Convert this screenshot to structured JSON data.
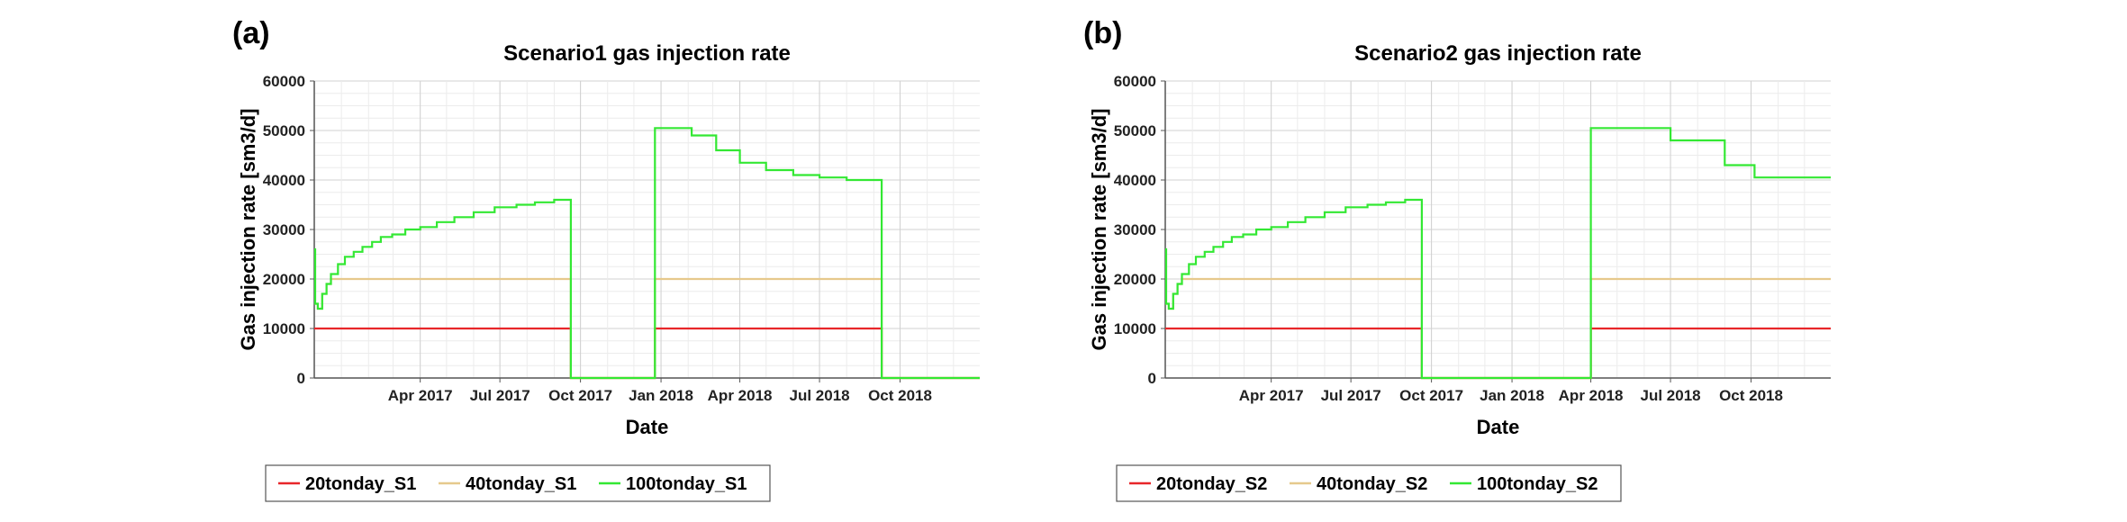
{
  "chart_data": [
    {
      "type": "line",
      "panel_label": "(a)",
      "title": "Scenario1 gas injection rate",
      "xlabel": "Date",
      "ylabel": "Gas injection rate [sm3/d]",
      "ylim": [
        0,
        60000
      ],
      "yticks": [
        "0",
        "10000",
        "20000",
        "30000",
        "40000",
        "50000",
        "60000"
      ],
      "xlim": [
        "2016-12-01",
        "2018-12-31"
      ],
      "xticks": [
        {
          "date": "2017-04-01",
          "label": "Apr 2017"
        },
        {
          "date": "2017-07-01",
          "label": "Jul 2017"
        },
        {
          "date": "2017-10-01",
          "label": "Oct 2017"
        },
        {
          "date": "2018-01-01",
          "label": "Jan 2018"
        },
        {
          "date": "2018-04-01",
          "label": "Apr 2018"
        },
        {
          "date": "2018-07-01",
          "label": "Jul 2018"
        },
        {
          "date": "2018-10-01",
          "label": "Oct 2018"
        }
      ],
      "grid": true,
      "legend_position": "bottom",
      "series": [
        {
          "name": "20tonday_S1",
          "color": "#e8262a",
          "x": [
            "2016-12-01",
            "2017-09-20",
            "2017-09-20",
            "2017-12-25",
            "2017-12-25",
            "2018-09-10",
            "2018-09-10",
            "2018-12-31"
          ],
          "y": [
            10000,
            10000,
            0,
            0,
            10000,
            10000,
            0,
            0
          ]
        },
        {
          "name": "40tonday_S1",
          "color": "#e6c98c",
          "x": [
            "2016-12-01",
            "2016-12-05",
            "2016-12-10",
            "2016-12-15",
            "2016-12-20",
            "2017-09-20",
            "2017-09-20",
            "2017-12-25",
            "2017-12-25",
            "2018-09-10",
            "2018-09-10",
            "2018-12-31"
          ],
          "y": [
            15000,
            14000,
            17000,
            19000,
            20000,
            20000,
            0,
            0,
            20000,
            20000,
            0,
            0
          ]
        },
        {
          "name": "100tonday_S1",
          "color": "#33e833",
          "x": [
            "2016-12-01",
            "2016-12-02",
            "2016-12-05",
            "2016-12-10",
            "2016-12-15",
            "2016-12-20",
            "2016-12-28",
            "2017-01-05",
            "2017-01-15",
            "2017-01-25",
            "2017-02-05",
            "2017-02-15",
            "2017-02-28",
            "2017-03-15",
            "2017-04-01",
            "2017-04-20",
            "2017-05-10",
            "2017-06-01",
            "2017-06-25",
            "2017-07-20",
            "2017-08-10",
            "2017-09-01",
            "2017-09-20",
            "2017-09-20",
            "2017-12-25",
            "2017-12-25",
            "2018-02-05",
            "2018-03-05",
            "2018-04-01",
            "2018-05-01",
            "2018-06-01",
            "2018-07-01",
            "2018-08-01",
            "2018-09-10",
            "2018-09-10",
            "2018-12-31"
          ],
          "y": [
            26000,
            15000,
            14000,
            17000,
            19000,
            21000,
            23000,
            24500,
            25500,
            26500,
            27500,
            28500,
            29000,
            30000,
            30500,
            31500,
            32500,
            33500,
            34500,
            35000,
            35500,
            36000,
            36000,
            0,
            0,
            50500,
            49000,
            46000,
            43500,
            42000,
            41000,
            40500,
            40000,
            39500,
            0,
            0
          ]
        }
      ]
    },
    {
      "type": "line",
      "panel_label": "(b)",
      "title": "Scenario2 gas injection rate",
      "xlabel": "Date",
      "ylabel": "Gas injection rate [sm3/d]",
      "ylim": [
        0,
        60000
      ],
      "yticks": [
        "0",
        "10000",
        "20000",
        "30000",
        "40000",
        "50000",
        "60000"
      ],
      "xlim": [
        "2016-12-01",
        "2018-12-31"
      ],
      "xticks": [
        {
          "date": "2017-04-01",
          "label": "Apr 2017"
        },
        {
          "date": "2017-07-01",
          "label": "Jul 2017"
        },
        {
          "date": "2017-10-01",
          "label": "Oct 2017"
        },
        {
          "date": "2018-01-01",
          "label": "Jan 2018"
        },
        {
          "date": "2018-04-01",
          "label": "Apr 2018"
        },
        {
          "date": "2018-07-01",
          "label": "Jul 2018"
        },
        {
          "date": "2018-10-01",
          "label": "Oct 2018"
        }
      ],
      "grid": true,
      "legend_position": "bottom",
      "series": [
        {
          "name": "20tonday_S2",
          "color": "#e8262a",
          "x": [
            "2016-12-01",
            "2017-09-20",
            "2017-09-20",
            "2018-04-01",
            "2018-04-01",
            "2018-12-31"
          ],
          "y": [
            10000,
            10000,
            0,
            0,
            10000,
            10000
          ]
        },
        {
          "name": "40tonday_S2",
          "color": "#e6c98c",
          "x": [
            "2016-12-01",
            "2016-12-05",
            "2016-12-10",
            "2016-12-15",
            "2016-12-20",
            "2017-09-20",
            "2017-09-20",
            "2018-04-01",
            "2018-04-01",
            "2018-12-31"
          ],
          "y": [
            15000,
            14000,
            17000,
            19000,
            20000,
            20000,
            0,
            0,
            20000,
            20000
          ]
        },
        {
          "name": "100tonday_S2",
          "color": "#33e833",
          "x": [
            "2016-12-01",
            "2016-12-02",
            "2016-12-05",
            "2016-12-10",
            "2016-12-15",
            "2016-12-20",
            "2016-12-28",
            "2017-01-05",
            "2017-01-15",
            "2017-01-25",
            "2017-02-05",
            "2017-02-15",
            "2017-02-28",
            "2017-03-15",
            "2017-04-01",
            "2017-04-20",
            "2017-05-10",
            "2017-06-01",
            "2017-06-25",
            "2017-07-20",
            "2017-08-10",
            "2017-09-01",
            "2017-09-20",
            "2017-09-20",
            "2018-04-01",
            "2018-04-01",
            "2018-07-01",
            "2018-09-01",
            "2018-10-05",
            "2018-12-31"
          ],
          "y": [
            26000,
            15000,
            14000,
            17000,
            19000,
            21000,
            23000,
            24500,
            25500,
            26500,
            27500,
            28500,
            29000,
            30000,
            30500,
            31500,
            32500,
            33500,
            34500,
            35000,
            35500,
            36000,
            36000,
            0,
            0,
            50500,
            48000,
            43000,
            40500,
            40500
          ]
        }
      ]
    }
  ]
}
